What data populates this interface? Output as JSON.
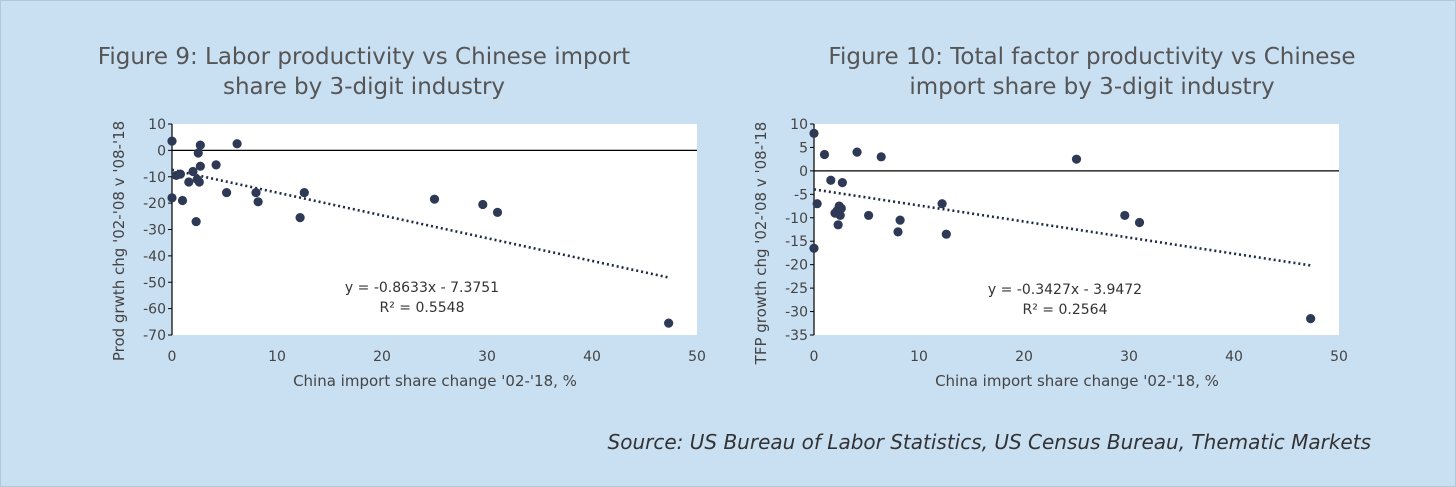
{
  "source": "Source: US Bureau of Labor Statistics, US Census Bureau, Thematic Markets",
  "chart_data": [
    {
      "type": "scatter",
      "title_line1": "Figure 9: Labor productivity vs Chinese import",
      "title_line2": "share by 3-digit industry",
      "xlabel": "China import share change '02-'18, %",
      "ylabel": "Prod grwth chg '02-'08 v '08-'18",
      "xlim": [
        0,
        50
      ],
      "ylim": [
        -70,
        10
      ],
      "xticks": [
        0,
        10,
        20,
        30,
        40,
        50
      ],
      "yticks": [
        10,
        0,
        -10,
        -20,
        -30,
        -40,
        -50,
        -60,
        -70
      ],
      "trendline": {
        "slope": -0.8633,
        "intercept": -7.3751,
        "x_range": [
          0,
          47.3
        ],
        "style": "dotted"
      },
      "equation": "y = -0.8633x - 7.3751",
      "r2": "R² = 0.5548",
      "points": [
        {
          "x": 0.0,
          "y": 3.5
        },
        {
          "x": 0.0,
          "y": -18.0
        },
        {
          "x": 0.4,
          "y": -9.5
        },
        {
          "x": 0.8,
          "y": -9.0
        },
        {
          "x": 1.0,
          "y": -19.0
        },
        {
          "x": 1.6,
          "y": -12.0
        },
        {
          "x": 2.0,
          "y": -8.0
        },
        {
          "x": 2.3,
          "y": -27.0
        },
        {
          "x": 2.4,
          "y": -11.0
        },
        {
          "x": 2.5,
          "y": -1.0
        },
        {
          "x": 2.6,
          "y": -12.0
        },
        {
          "x": 2.7,
          "y": -6.0
        },
        {
          "x": 2.7,
          "y": 2.0
        },
        {
          "x": 4.2,
          "y": -5.5
        },
        {
          "x": 5.2,
          "y": -16.0
        },
        {
          "x": 6.2,
          "y": 2.5
        },
        {
          "x": 8.0,
          "y": -16.0
        },
        {
          "x": 8.2,
          "y": -19.5
        },
        {
          "x": 12.2,
          "y": -25.5
        },
        {
          "x": 12.6,
          "y": -16.0
        },
        {
          "x": 25.0,
          "y": -18.5
        },
        {
          "x": 29.6,
          "y": -20.5
        },
        {
          "x": 31.0,
          "y": -23.5
        },
        {
          "x": 47.3,
          "y": -65.5
        }
      ]
    },
    {
      "type": "scatter",
      "title_line1": "Figure 10: Total factor productivity vs Chinese",
      "title_line2": "import share by 3-digit industry",
      "xlabel": "China import share change '02-'18, %",
      "ylabel": "TFP growth chg '02-'08 v '08-'18",
      "xlim": [
        0,
        50
      ],
      "ylim": [
        -35,
        10
      ],
      "xticks": [
        0,
        10,
        20,
        30,
        40,
        50
      ],
      "yticks": [
        10,
        5,
        0,
        -5,
        -10,
        -15,
        -20,
        -25,
        -30,
        -35
      ],
      "trendline": {
        "slope": -0.3427,
        "intercept": -3.9472,
        "x_range": [
          0,
          47.3
        ],
        "style": "dotted"
      },
      "equation": "y = -0.3427x - 3.9472",
      "r2": "R² = 0.2564",
      "points": [
        {
          "x": 0.0,
          "y": 8.0
        },
        {
          "x": 0.0,
          "y": -16.5
        },
        {
          "x": 0.3,
          "y": -7.0
        },
        {
          "x": 1.0,
          "y": 3.5
        },
        {
          "x": 1.6,
          "y": -2.0
        },
        {
          "x": 2.0,
          "y": -9.0
        },
        {
          "x": 2.2,
          "y": -8.5
        },
        {
          "x": 2.3,
          "y": -11.5
        },
        {
          "x": 2.4,
          "y": -7.5
        },
        {
          "x": 2.5,
          "y": -9.5
        },
        {
          "x": 2.6,
          "y": -8.0
        },
        {
          "x": 2.7,
          "y": -2.5
        },
        {
          "x": 4.1,
          "y": 4.0
        },
        {
          "x": 5.2,
          "y": -9.5
        },
        {
          "x": 6.4,
          "y": 3.0
        },
        {
          "x": 8.0,
          "y": -13.0
        },
        {
          "x": 8.2,
          "y": -10.5
        },
        {
          "x": 12.2,
          "y": -7.0
        },
        {
          "x": 12.6,
          "y": -13.5
        },
        {
          "x": 25.0,
          "y": 2.5
        },
        {
          "x": 29.6,
          "y": -9.5
        },
        {
          "x": 31.0,
          "y": -11.0
        },
        {
          "x": 47.3,
          "y": -31.5
        }
      ]
    }
  ]
}
